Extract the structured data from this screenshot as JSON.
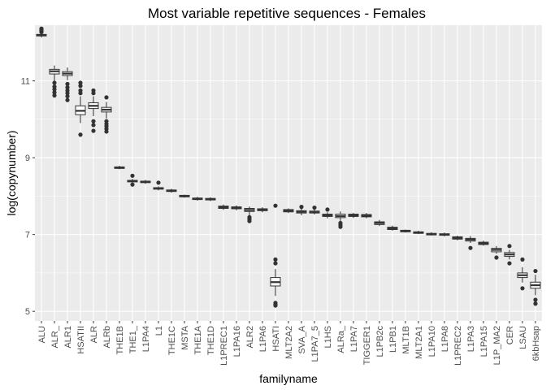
{
  "chart_data": {
    "type": "boxplot",
    "title": "Most variable repetitive sequences - Females",
    "xlabel": "familyname",
    "ylabel": "log(copynumber)",
    "ylim": [
      4.75,
      12.45
    ],
    "yticks": [
      5,
      7,
      9,
      11
    ],
    "grid": true,
    "colors": {
      "panel": "#ebebeb",
      "grid_major": "#ffffff",
      "box_fill": "#ffffff",
      "box_line": "#333333",
      "outlier": "#333333",
      "tick_mark": "#333333"
    },
    "categories": [
      "ALU",
      "ALR_",
      "ALR1",
      "HSATII",
      "ALR",
      "ALRb",
      "THE1B",
      "THE1_",
      "L1PA4",
      "L1",
      "THE1C",
      "MSTA",
      "THE1A",
      "THE1D",
      "L1PREC1",
      "L1PA16",
      "ALR2",
      "L1PA6",
      "HSATI",
      "MLT2A2",
      "SVA_A",
      "L1PA7_5",
      "L1HS",
      "ALRa_",
      "L1PA7",
      "TIGGER1",
      "L1PB2c",
      "L1PB1",
      "MLT1B",
      "MLT2A1",
      "L1PA10",
      "L1PA8",
      "L1PREC2",
      "L1PA3",
      "L1PA15",
      "L1P_MA2",
      "CER",
      "LSAU",
      "6kbHsap"
    ],
    "boxes": [
      {
        "min": 12.13,
        "q1": 12.17,
        "median": 12.19,
        "q3": 12.21,
        "max": 12.25,
        "outliers": [
          12.27,
          12.3,
          12.33,
          12.36
        ]
      },
      {
        "min": 11.0,
        "q1": 11.18,
        "median": 11.25,
        "q3": 11.3,
        "max": 11.4,
        "outliers": [
          10.95,
          10.85,
          10.78,
          10.7,
          10.62
        ]
      },
      {
        "min": 11.02,
        "q1": 11.14,
        "median": 11.19,
        "q3": 11.24,
        "max": 11.35,
        "outliers": [
          10.92,
          10.83,
          10.75,
          10.68,
          10.6,
          10.5
        ]
      },
      {
        "min": 9.9,
        "q1": 10.12,
        "median": 10.22,
        "q3": 10.35,
        "max": 10.6,
        "outliers": [
          10.95,
          10.87,
          10.75,
          10.68,
          9.6
        ]
      },
      {
        "min": 10.08,
        "q1": 10.28,
        "median": 10.35,
        "q3": 10.43,
        "max": 10.6,
        "outliers": [
          10.75,
          10.68,
          9.95,
          9.85,
          9.7
        ]
      },
      {
        "min": 10.02,
        "q1": 10.19,
        "median": 10.25,
        "q3": 10.31,
        "max": 10.45,
        "outliers": [
          10.57,
          9.95,
          9.88,
          9.82,
          9.75,
          9.68
        ]
      },
      {
        "min": 8.7,
        "q1": 8.72,
        "median": 8.74,
        "q3": 8.76,
        "max": 8.79,
        "outliers": []
      },
      {
        "min": 8.35,
        "q1": 8.37,
        "median": 8.39,
        "q3": 8.41,
        "max": 8.45,
        "outliers": [
          8.53,
          8.3
        ]
      },
      {
        "min": 8.32,
        "q1": 8.35,
        "median": 8.37,
        "q3": 8.39,
        "max": 8.42,
        "outliers": []
      },
      {
        "min": 8.15,
        "q1": 8.18,
        "median": 8.2,
        "q3": 8.22,
        "max": 8.25,
        "outliers": [
          8.35
        ]
      },
      {
        "min": 8.09,
        "q1": 8.12,
        "median": 8.14,
        "q3": 8.16,
        "max": 8.19,
        "outliers": []
      },
      {
        "min": 7.96,
        "q1": 7.98,
        "median": 8.0,
        "q3": 8.02,
        "max": 8.04,
        "outliers": []
      },
      {
        "min": 7.88,
        "q1": 7.91,
        "median": 7.93,
        "q3": 7.95,
        "max": 7.98,
        "outliers": []
      },
      {
        "min": 7.87,
        "q1": 7.9,
        "median": 7.92,
        "q3": 7.94,
        "max": 7.97,
        "outliers": []
      },
      {
        "min": 7.64,
        "q1": 7.68,
        "median": 7.71,
        "q3": 7.74,
        "max": 7.78,
        "outliers": []
      },
      {
        "min": 7.63,
        "q1": 7.67,
        "median": 7.69,
        "q3": 7.72,
        "max": 7.76,
        "outliers": []
      },
      {
        "min": 7.5,
        "q1": 7.6,
        "median": 7.64,
        "q3": 7.68,
        "max": 7.73,
        "outliers": [
          7.45,
          7.4,
          7.35
        ]
      },
      {
        "min": 7.58,
        "q1": 7.62,
        "median": 7.64,
        "q3": 7.67,
        "max": 7.71,
        "outliers": []
      },
      {
        "min": 5.4,
        "q1": 5.66,
        "median": 5.76,
        "q3": 5.88,
        "max": 6.1,
        "outliers": [
          6.35,
          6.25,
          5.22,
          5.18,
          5.15,
          7.75
        ]
      },
      {
        "min": 7.56,
        "q1": 7.59,
        "median": 7.62,
        "q3": 7.65,
        "max": 7.68,
        "outliers": []
      },
      {
        "min": 7.5,
        "q1": 7.56,
        "median": 7.59,
        "q3": 7.62,
        "max": 7.68,
        "outliers": [
          7.72
        ]
      },
      {
        "min": 7.52,
        "q1": 7.56,
        "median": 7.58,
        "q3": 7.61,
        "max": 7.66,
        "outliers": [
          7.7
        ]
      },
      {
        "min": 7.42,
        "q1": 7.47,
        "median": 7.5,
        "q3": 7.53,
        "max": 7.58,
        "outliers": [
          7.65
        ]
      },
      {
        "min": 7.35,
        "q1": 7.44,
        "median": 7.48,
        "q3": 7.53,
        "max": 7.6,
        "outliers": [
          7.3,
          7.25,
          7.2
        ]
      },
      {
        "min": 7.43,
        "q1": 7.47,
        "median": 7.5,
        "q3": 7.53,
        "max": 7.56,
        "outliers": []
      },
      {
        "min": 7.42,
        "q1": 7.46,
        "median": 7.49,
        "q3": 7.52,
        "max": 7.56,
        "outliers": []
      },
      {
        "min": 7.22,
        "q1": 7.26,
        "median": 7.3,
        "q3": 7.33,
        "max": 7.38,
        "outliers": []
      },
      {
        "min": 7.1,
        "q1": 7.13,
        "median": 7.16,
        "q3": 7.19,
        "max": 7.23,
        "outliers": []
      },
      {
        "min": 7.05,
        "q1": 7.07,
        "median": 7.09,
        "q3": 7.11,
        "max": 7.13,
        "outliers": []
      },
      {
        "min": 7.01,
        "q1": 7.03,
        "median": 7.05,
        "q3": 7.07,
        "max": 7.1,
        "outliers": []
      },
      {
        "min": 6.97,
        "q1": 6.99,
        "median": 7.01,
        "q3": 7.03,
        "max": 7.06,
        "outliers": []
      },
      {
        "min": 6.95,
        "q1": 6.98,
        "median": 7.0,
        "q3": 7.02,
        "max": 7.05,
        "outliers": []
      },
      {
        "min": 6.85,
        "q1": 6.88,
        "median": 6.91,
        "q3": 6.94,
        "max": 6.97,
        "outliers": []
      },
      {
        "min": 6.78,
        "q1": 6.83,
        "median": 6.87,
        "q3": 6.9,
        "max": 6.96,
        "outliers": [
          6.65
        ]
      },
      {
        "min": 6.71,
        "q1": 6.74,
        "median": 6.77,
        "q3": 6.8,
        "max": 6.84,
        "outliers": []
      },
      {
        "min": 6.5,
        "q1": 6.55,
        "median": 6.6,
        "q3": 6.64,
        "max": 6.7,
        "outliers": [
          6.4
        ]
      },
      {
        "min": 6.35,
        "q1": 6.43,
        "median": 6.48,
        "q3": 6.53,
        "max": 6.6,
        "outliers": [
          6.7,
          6.25
        ]
      },
      {
        "min": 5.75,
        "q1": 5.88,
        "median": 5.94,
        "q3": 6.0,
        "max": 6.15,
        "outliers": [
          6.35,
          5.6
        ]
      },
      {
        "min": 5.42,
        "q1": 5.6,
        "median": 5.68,
        "q3": 5.76,
        "max": 5.95,
        "outliers": [
          6.05,
          5.3,
          5.2
        ]
      }
    ]
  }
}
